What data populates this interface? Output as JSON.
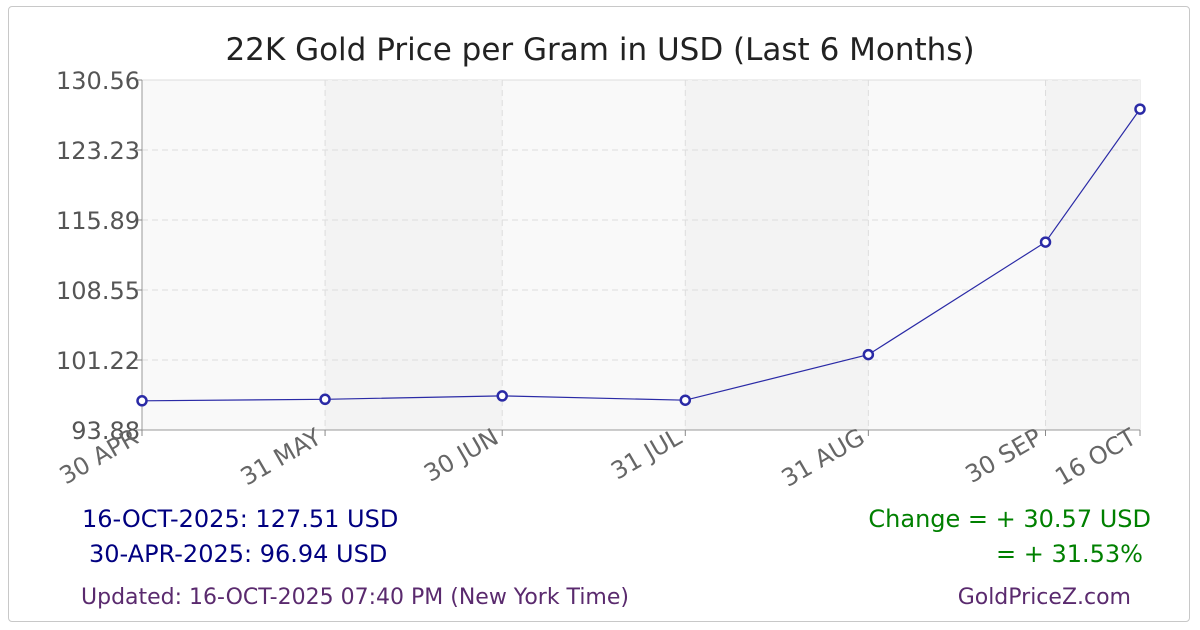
{
  "chart_data": {
    "type": "line",
    "title": "22K Gold Price per Gram in USD (Last 6 Months)",
    "xlabel": "",
    "ylabel": "",
    "x_tick_labels": [
      "30 APR",
      "31 MAY",
      "30 JUN",
      "31 JUL",
      "31 AUG",
      "30 SEP",
      "16 OCT"
    ],
    "y_tick_labels": [
      "93.88",
      "101.22",
      "108.55",
      "115.89",
      "123.23",
      "130.56"
    ],
    "ylim": [
      93.88,
      130.56
    ],
    "grid": true,
    "series": [
      {
        "color": "#2a2aa6",
        "points": [
          {
            "x": "2025-04-30",
            "y": 96.94
          },
          {
            "x": "2025-05-31",
            "y": 97.1
          },
          {
            "x": "2025-06-30",
            "y": 97.45
          },
          {
            "x": "2025-07-31",
            "y": 97.0
          },
          {
            "x": "2025-08-31",
            "y": 101.78
          },
          {
            "x": "2025-09-30",
            "y": 113.57
          },
          {
            "x": "2025-10-16",
            "y": 127.51
          }
        ]
      }
    ]
  },
  "footer": {
    "latest": "16-OCT-2025: 127.51 USD",
    "earliest": "30-APR-2025: 96.94 USD",
    "change_abs": "Change = + 30.57 USD",
    "change_pct": "= + 31.53%",
    "updated": "Updated: 16-OCT-2025 07:40 PM (New York Time)",
    "site": "GoldPriceZ.com"
  },
  "colors": {
    "line": "#2a2aa6",
    "footer_values": "#000080",
    "change": "#008000",
    "updated": "#5a2a6e"
  }
}
